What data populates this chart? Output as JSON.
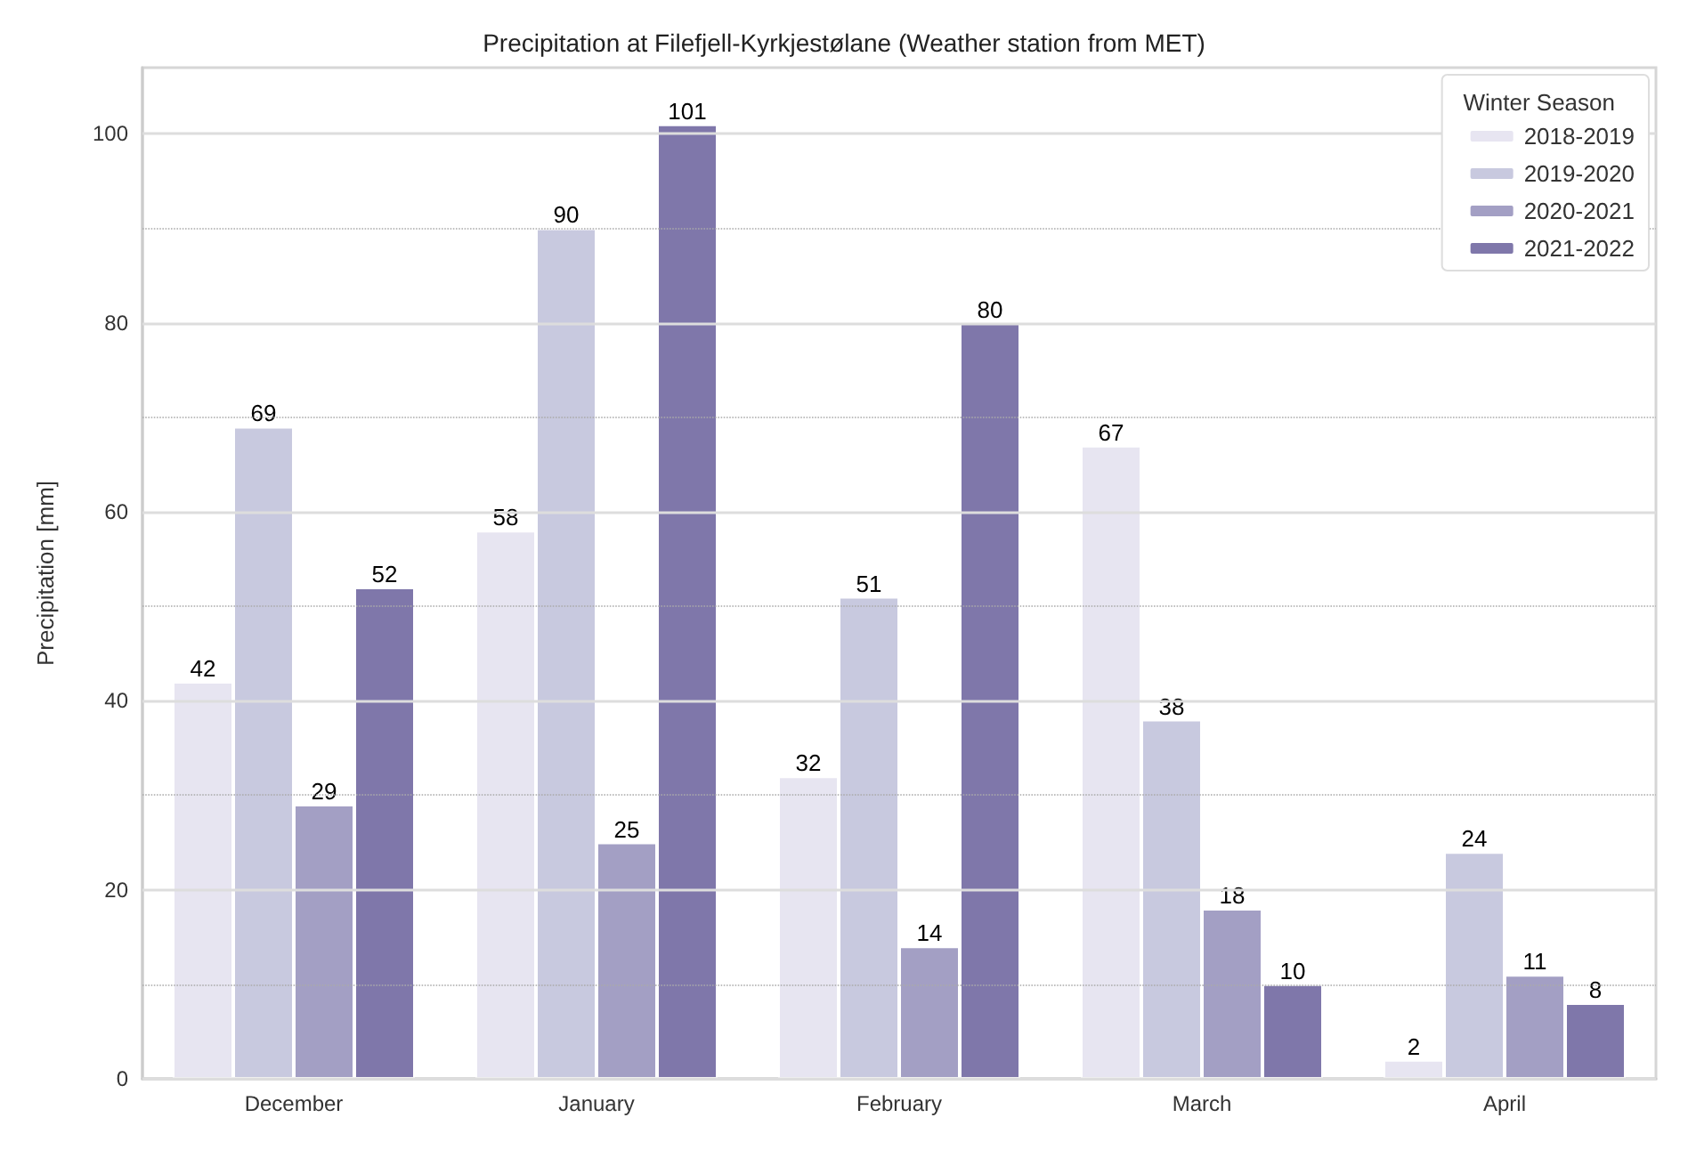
{
  "chart_data": {
    "type": "bar",
    "title": "Precipitation at Filefjell-Kyrkjestølane (Weather station from MET)",
    "ylabel": "Precipitation [mm]",
    "legend_title": "Winter Season",
    "categories": [
      "December",
      "January",
      "February",
      "March",
      "April"
    ],
    "series": [
      {
        "name": "2018-2019",
        "color": "#e7e5f1",
        "values": [
          42,
          58,
          32,
          67,
          2
        ]
      },
      {
        "name": "2019-2020",
        "color": "#c8c9df",
        "values": [
          69,
          90,
          51,
          38,
          24
        ]
      },
      {
        "name": "2020-2021",
        "color": "#a39fc4",
        "values": [
          29,
          25,
          14,
          18,
          11
        ]
      },
      {
        "name": "2021-2022",
        "color": "#7f77aa",
        "values": [
          52,
          101,
          80,
          10,
          8
        ]
      }
    ],
    "data_labels": true,
    "ylim": [
      0,
      107
    ],
    "yticks": [
      0,
      {
        "value": 10,
        "label": null
      },
      20,
      {
        "value": 30,
        "label": null
      },
      40,
      {
        "value": 50,
        "label": null
      },
      60,
      {
        "value": 70,
        "label": null
      },
      80,
      {
        "value": 90,
        "label": null
      },
      100
    ],
    "grid": "y",
    "legend": "top right"
  }
}
